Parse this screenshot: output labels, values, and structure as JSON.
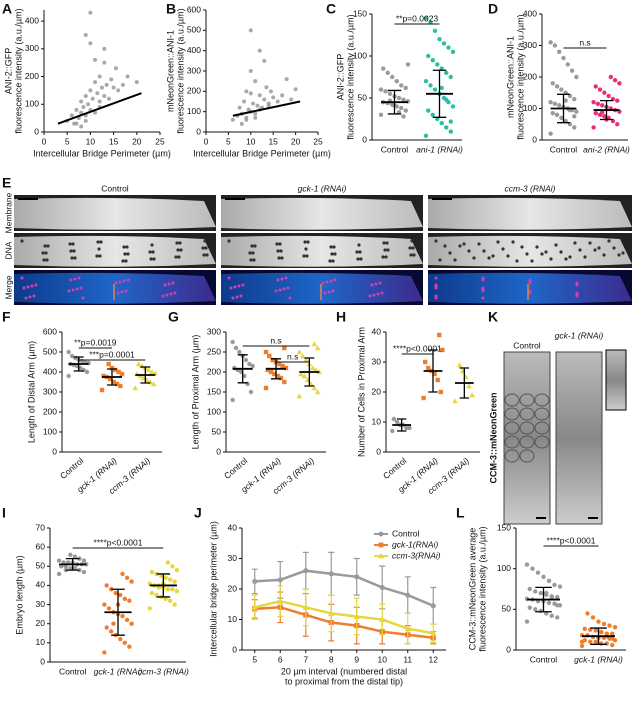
{
  "chart_data": [
    {
      "panel": "A",
      "type": "scatter",
      "y_label": [
        "ANI-2::GFP",
        "fluorescence intensity (a.u./µm)"
      ],
      "x_label": "Intercellular Bridge Perimeter (µm)",
      "xlim": [
        0,
        25
      ],
      "xticks": [
        0,
        5,
        10,
        15,
        20,
        25
      ],
      "ylim": [
        0,
        440
      ],
      "yticks": [
        0,
        100,
        200,
        300,
        400
      ],
      "color": "#9a9a9a",
      "line_color": "#000000",
      "x": [
        5,
        6,
        6.5,
        7,
        7.5,
        8,
        8,
        8.5,
        9,
        9,
        9.5,
        10,
        10,
        10.5,
        11,
        11,
        11.5,
        12,
        12,
        12.5,
        13,
        13,
        13.5,
        14,
        14.5,
        15,
        15.5,
        16,
        17,
        18,
        20,
        7,
        9,
        10,
        11,
        12,
        8,
        13,
        10,
        9
      ],
      "y": [
        40,
        60,
        30,
        80,
        50,
        70,
        110,
        90,
        60,
        130,
        100,
        150,
        80,
        120,
        180,
        70,
        140,
        110,
        200,
        160,
        130,
        250,
        170,
        120,
        190,
        160,
        230,
        150,
        170,
        200,
        180,
        30,
        40,
        320,
        260,
        90,
        20,
        300,
        430,
        350
      ],
      "trend": {
        "x": [
          3,
          21
        ],
        "y": [
          30,
          140
        ]
      }
    },
    {
      "panel": "B",
      "type": "scatter",
      "y_label": [
        "mNeonGreen::ANI-1",
        "fluorescence intensity (a.u./µm)"
      ],
      "x_label": "Intercellular Bridge Perimeter (µm)",
      "xlim": [
        0,
        25
      ],
      "xticks": [
        0,
        5,
        10,
        15,
        20,
        25
      ],
      "ylim": [
        0,
        600
      ],
      "yticks": [
        0,
        100,
        200,
        300,
        400,
        500,
        600
      ],
      "color": "#9a9a9a",
      "line_color": "#000000",
      "x": [
        6,
        7,
        7.5,
        8,
        8.5,
        9,
        9,
        9.5,
        10,
        10,
        10.5,
        11,
        11,
        11.5,
        12,
        12,
        12.5,
        13,
        13.5,
        14,
        14.5,
        15,
        16,
        17,
        18,
        19,
        20,
        8,
        9,
        10,
        11,
        12,
        13,
        10,
        14
      ],
      "y": [
        60,
        80,
        120,
        90,
        150,
        70,
        200,
        110,
        100,
        300,
        140,
        90,
        250,
        130,
        180,
        400,
        120,
        160,
        220,
        140,
        200,
        170,
        150,
        180,
        260,
        160,
        210,
        40,
        60,
        500,
        70,
        110,
        350,
        190,
        130
      ],
      "trend": {
        "x": [
          6,
          21
        ],
        "y": [
          80,
          150
        ]
      }
    },
    {
      "panel": "C",
      "type": "dotplot",
      "y_label": [
        "ANI-2::GFP",
        "fluorescence intensity (a.u./µm)"
      ],
      "ylim": [
        0,
        150
      ],
      "yticks": [
        0,
        50,
        100,
        150
      ],
      "categories": [
        "Control",
        "ani-1 (RNAi)"
      ],
      "comparisons": [
        "**p=0.0023"
      ],
      "groups": [
        {
          "color": "#9a9a9a",
          "marker": "circle",
          "mean": 45,
          "sd": 14,
          "values": [
            30,
            35,
            38,
            40,
            42,
            44,
            45,
            46,
            48,
            50,
            52,
            55,
            58,
            60,
            62,
            65,
            70,
            75,
            80,
            85,
            90,
            28,
            33,
            41,
            47
          ]
        },
        {
          "color": "#2bbfa4",
          "marker": "circle",
          "mean": 55,
          "sd": 28,
          "values": [
            5,
            10,
            15,
            20,
            25,
            30,
            35,
            40,
            45,
            50,
            55,
            60,
            65,
            70,
            75,
            80,
            85,
            90,
            95,
            100,
            105,
            110,
            115,
            120,
            130,
            140,
            145,
            22,
            48,
            62
          ]
        }
      ]
    },
    {
      "panel": "D",
      "type": "dotplot",
      "y_label": [
        "mNeonGreen::ANI-1",
        "fluorescence intensity (a.u./µm)"
      ],
      "ylim": [
        0,
        400
      ],
      "yticks": [
        0,
        100,
        200,
        300,
        400
      ],
      "categories": [
        "Control",
        "ani-2 (RNAi)"
      ],
      "comparisons": [
        "n.s"
      ],
      "groups": [
        {
          "color": "#9a9a9a",
          "marker": "circle",
          "mean": 100,
          "sd": 45,
          "values": [
            20,
            40,
            50,
            60,
            70,
            80,
            85,
            90,
            95,
            100,
            105,
            110,
            115,
            120,
            130,
            140,
            150,
            160,
            170,
            180,
            200,
            220,
            240,
            260,
            280,
            300,
            310,
            75,
            95,
            125
          ]
        },
        {
          "color": "#e8307a",
          "marker": "circle",
          "mean": 95,
          "sd": 30,
          "values": [
            40,
            50,
            60,
            70,
            75,
            80,
            85,
            90,
            95,
            100,
            105,
            110,
            115,
            120,
            125,
            130,
            140,
            150,
            160,
            170,
            180,
            190,
            200,
            65,
            88
          ]
        }
      ]
    },
    {
      "panel": "F",
      "type": "dotplot",
      "y_label": [
        "Length of Distal Arm (µm)"
      ],
      "ylim": [
        0,
        600
      ],
      "yticks": [
        0,
        100,
        200,
        300,
        400,
        500,
        600
      ],
      "categories": [
        "Control",
        "gck-1 (RNAi)",
        "ccm-3 (RNAi)"
      ],
      "comparisons": [
        "**p=0.0019",
        "***p=0.0001"
      ],
      "groups": [
        {
          "color": "#9a9a9a",
          "marker": "circle",
          "mean": 440,
          "sd": 35,
          "values": [
            380,
            400,
            410,
            420,
            430,
            435,
            440,
            445,
            450,
            455,
            460,
            470,
            480,
            500
          ]
        },
        {
          "color": "#ef7d2e",
          "marker": "square",
          "mean": 375,
          "sd": 40,
          "values": [
            310,
            330,
            340,
            350,
            365,
            375,
            380,
            390,
            400,
            410,
            420,
            440
          ]
        },
        {
          "color": "#e6d83a",
          "marker": "triangle",
          "mean": 385,
          "sd": 40,
          "values": [
            320,
            340,
            350,
            360,
            370,
            380,
            390,
            395,
            400,
            410,
            420,
            430,
            440
          ]
        }
      ]
    },
    {
      "panel": "G",
      "type": "dotplot",
      "y_label": [
        "Length of Proximal Arm (µm)"
      ],
      "ylim": [
        0,
        300
      ],
      "yticks": [
        0,
        50,
        100,
        150,
        200,
        250,
        300
      ],
      "categories": [
        "Control",
        "gck-1 (RNAi)",
        "ccm-3 (RNAi)"
      ],
      "comparisons": [
        "n.s",
        "n.s"
      ],
      "groups": [
        {
          "color": "#9a9a9a",
          "marker": "circle",
          "mean": 208,
          "sd": 35,
          "values": [
            130,
            150,
            170,
            190,
            200,
            205,
            210,
            215,
            220,
            230,
            240,
            250,
            260,
            275
          ]
        },
        {
          "color": "#ef7d2e",
          "marker": "square",
          "mean": 208,
          "sd": 25,
          "values": [
            160,
            175,
            185,
            190,
            195,
            200,
            205,
            210,
            215,
            220,
            225,
            230,
            240,
            250,
            260
          ]
        },
        {
          "color": "#e6d83a",
          "marker": "triangle",
          "mean": 200,
          "sd": 35,
          "values": [
            140,
            150,
            160,
            170,
            180,
            190,
            195,
            200,
            205,
            210,
            220,
            230,
            240,
            250,
            260,
            270
          ]
        }
      ]
    },
    {
      "panel": "H",
      "type": "dotplot",
      "y_label": [
        "Number of Cells in Proximal Arm"
      ],
      "ylim": [
        0,
        40
      ],
      "yticks": [
        0,
        10,
        20,
        30,
        40
      ],
      "categories": [
        "Control",
        "gck-1 (RNAi)",
        "ccm-3 (RNAi)"
      ],
      "comparisons": [
        "****p<0.0001"
      ],
      "groups": [
        {
          "color": "#9a9a9a",
          "marker": "circle",
          "mean": 9,
          "sd": 2,
          "values": [
            7,
            8,
            8,
            9,
            9,
            10,
            11
          ]
        },
        {
          "color": "#ef7d2e",
          "marker": "square",
          "mean": 27,
          "sd": 7,
          "values": [
            18,
            20,
            24,
            26,
            27,
            28,
            30,
            34,
            39
          ]
        },
        {
          "color": "#e6d83a",
          "marker": "triangle",
          "mean": 23,
          "sd": 5,
          "values": [
            17,
            19,
            22,
            25,
            27,
            29
          ]
        }
      ]
    },
    {
      "panel": "I",
      "type": "dotplot",
      "y_label": [
        "Embryo length (µm)"
      ],
      "ylim": [
        0,
        70
      ],
      "yticks": [
        0,
        10,
        20,
        30,
        40,
        50,
        60,
        70
      ],
      "categories": [
        "Control",
        "gck-1 (RNAi)",
        "ccm-3 (RNAi)"
      ],
      "comparisons": [
        "****p<0.0001"
      ],
      "groups": [
        {
          "color": "#9a9a9a",
          "marker": "circle",
          "mean": 51,
          "sd": 3,
          "values": [
            46,
            47,
            48,
            49,
            49,
            50,
            50,
            51,
            51,
            51,
            52,
            52,
            52,
            53,
            53,
            54,
            55,
            56,
            48,
            50
          ]
        },
        {
          "color": "#ef7d2e",
          "marker": "circle",
          "mean": 26,
          "sd": 12,
          "values": [
            5,
            8,
            10,
            12,
            14,
            16,
            18,
            20,
            22,
            24,
            25,
            26,
            28,
            30,
            32,
            33,
            35,
            36,
            38,
            40,
            42,
            44,
            46,
            30,
            20
          ]
        },
        {
          "color": "#e6d83a",
          "marker": "circle",
          "mean": 40,
          "sd": 6,
          "values": [
            28,
            30,
            32,
            33,
            34,
            35,
            36,
            37,
            38,
            38,
            39,
            40,
            40,
            41,
            42,
            43,
            44,
            45,
            46,
            47,
            48,
            50,
            52,
            41,
            39
          ]
        }
      ]
    },
    {
      "panel": "J",
      "type": "line",
      "y_label": [
        "Intercellular bridge perimeter (µm)"
      ],
      "x_label": [
        "20 µm interval (numbered distal",
        "to proximal from the distal tip)"
      ],
      "x": [
        5,
        6,
        7,
        8,
        9,
        10,
        11,
        12
      ],
      "xlim": [
        4.5,
        12.5
      ],
      "xticks": [
        5,
        6,
        7,
        8,
        9,
        10,
        11,
        12
      ],
      "ylim": [
        0,
        40
      ],
      "yticks": [
        0,
        10,
        20,
        30,
        40
      ],
      "series": [
        {
          "name": "Control",
          "color": "#9a9a9a",
          "marker": "circle",
          "values": [
            22.5,
            23,
            26,
            25,
            24,
            20.5,
            18,
            14.5
          ],
          "errors": [
            4,
            6,
            6,
            7,
            6,
            7,
            6,
            6
          ]
        },
        {
          "name": "gck-1(RNAi)",
          "color": "#ef7d2e",
          "marker": "square",
          "values": [
            13.5,
            14,
            11.5,
            9,
            8,
            6,
            5,
            4
          ],
          "errors": [
            3,
            5,
            7,
            6,
            6,
            4,
            3,
            2
          ]
        },
        {
          "name": "ccm-3(RNAi)",
          "color": "#e6d83a",
          "marker": "triangle",
          "values": [
            14,
            16,
            14,
            12,
            11,
            10,
            7,
            5.5
          ],
          "errors": [
            4,
            5,
            6,
            6,
            6,
            5,
            5,
            3
          ]
        }
      ]
    },
    {
      "panel": "L",
      "type": "dotplot",
      "y_label": [
        "CCM-3::mNeonGreen average",
        "fluorescence intensity (a.u./µm)"
      ],
      "ylim": [
        0,
        150
      ],
      "yticks": [
        0,
        50,
        100,
        150
      ],
      "categories": [
        "Control",
        "gck-1 (RNAi)"
      ],
      "comparisons": [
        "****p<0.0001"
      ],
      "groups": [
        {
          "color": "#9a9a9a",
          "marker": "circle",
          "mean": 62,
          "sd": 15,
          "values": [
            35,
            40,
            42,
            45,
            48,
            50,
            52,
            55,
            57,
            58,
            60,
            60,
            62,
            63,
            65,
            66,
            68,
            70,
            72,
            75,
            78,
            80,
            85,
            90,
            95,
            100,
            105,
            55,
            65,
            70
          ]
        },
        {
          "color": "#ef7d2e",
          "marker": "circle",
          "mean": 17,
          "sd": 10,
          "values": [
            5,
            6,
            8,
            8,
            10,
            10,
            12,
            12,
            14,
            15,
            15,
            16,
            18,
            18,
            20,
            20,
            22,
            24,
            25,
            26,
            28,
            30,
            32,
            35,
            40,
            45,
            10,
            14,
            17,
            22
          ]
        }
      ]
    }
  ],
  "image_panels": [
    {
      "panel": "E",
      "columns": [
        "Control",
        "gck-1 (RNAi)",
        "ccm-3 (RNAi)"
      ],
      "rows": [
        "Membrane",
        "DNA",
        "Merge"
      ]
    },
    {
      "panel": "K",
      "columns": [
        "Control",
        "gck-1 (RNAi)"
      ],
      "y_label": "CCM-3::mNeonGreen"
    }
  ]
}
